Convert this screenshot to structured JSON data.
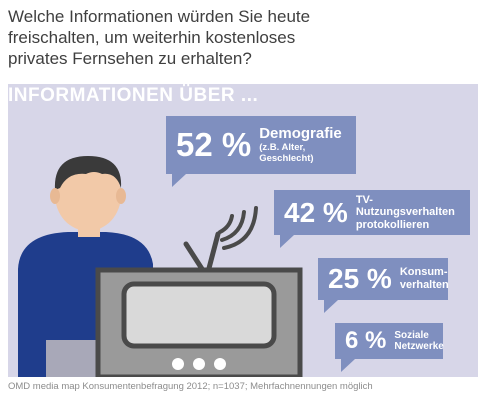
{
  "header": {
    "title_lines": [
      "Welche Informationen würden Sie heute",
      "freischalten, um weiterhin kostenloses",
      "privates Fernsehen zu erhalten?"
    ]
  },
  "panel": {
    "section_label": "INFORMATIONEN ÜBER ..."
  },
  "colors": {
    "panel_bg": "#d7d6e8",
    "bubble": "#7f8fbf",
    "shirt": "#1f3d8c",
    "skin": "#f2c9a8",
    "hair": "#3a3a3a",
    "tv_body": "#9a9a9a",
    "tv_dark": "#4a4a4a"
  },
  "chart_data": {
    "type": "bar",
    "categories": [
      "Demografie",
      "TV-Nutzungsverhalten protokollieren",
      "Konsumverhalten",
      "Soziale Netzwerke"
    ],
    "values": [
      52,
      42,
      25,
      6
    ],
    "labels": [
      {
        "pct": "52 %",
        "line1": "Demografie",
        "line2": "(z.B. Alter, Geschlecht)"
      },
      {
        "pct": "42 %",
        "line1": "TV-Nutzungsverhalten",
        "line2": "protokollieren"
      },
      {
        "pct": "25 %",
        "line1": "Konsum-",
        "line2": "verhalten"
      },
      {
        "pct": "6 %",
        "line1": "Soziale",
        "line2": "Netzwerke"
      }
    ]
  },
  "footer": {
    "source": "OMD media map Konsumentenbefragung 2012; n=1037; Mehrfachnennungen möglich"
  }
}
